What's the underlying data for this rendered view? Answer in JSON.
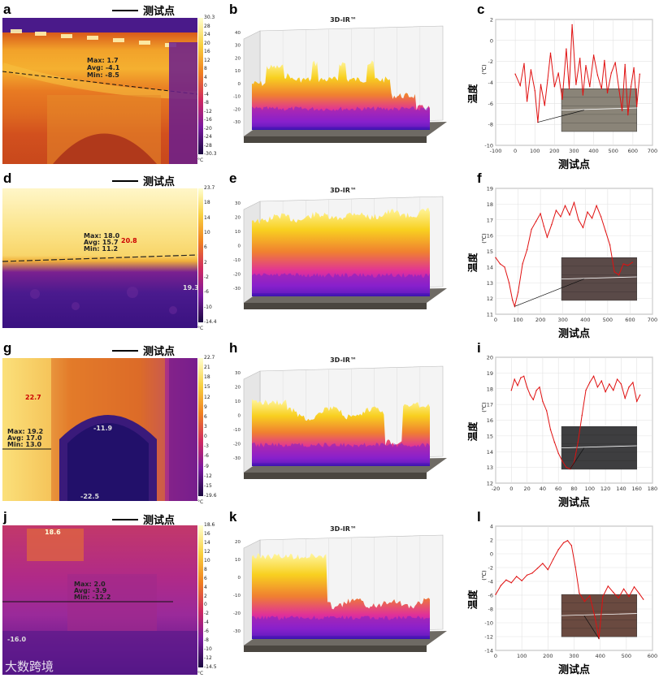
{
  "legend_label": "测试点",
  "ir_title": "3D-IR™",
  "watermark": "大数跨境",
  "rows": [
    {
      "thermal_letter": "a",
      "surface_letter": "b",
      "chart_letter": "c",
      "scale_ticks": [
        "30.3",
        "28",
        "24",
        "20",
        "16",
        "12",
        "8",
        "4",
        "0",
        "-4",
        "-8",
        "-12",
        "-16",
        "-20",
        "-24",
        "-28",
        "-30.3"
      ],
      "scale_unit": "°C",
      "surface_zticks": [
        "40",
        "30",
        "20",
        "10",
        "0",
        "-10",
        "-20",
        "-30"
      ],
      "annotations": [
        "Max: 1.7",
        "Avg: -4.1",
        "Min: -8.5"
      ]
    },
    {
      "thermal_letter": "d",
      "surface_letter": "e",
      "chart_letter": "f",
      "scale_ticks": [
        "23.7",
        "18",
        "14",
        "10",
        "6",
        "2",
        "-2",
        "-6",
        "-10",
        "-14.4"
      ],
      "scale_unit": "°C",
      "surface_zticks": [
        "30",
        "20",
        "10",
        "0",
        "-10",
        "-20",
        "-30"
      ],
      "annotations": [
        "Max: 18.0",
        "Avg: 15.7",
        "Min: 11.2",
        "20.8",
        "19.3"
      ]
    },
    {
      "thermal_letter": "g",
      "surface_letter": "h",
      "chart_letter": "i",
      "scale_ticks": [
        "22.7",
        "21",
        "18",
        "15",
        "12",
        "9",
        "6",
        "3",
        "0",
        "-3",
        "-6",
        "-9",
        "-12",
        "-15",
        "-19.6"
      ],
      "scale_unit": "°C",
      "surface_zticks": [
        "30",
        "20",
        "10",
        "0",
        "-10",
        "-20",
        "-30"
      ],
      "annotations": [
        "22.7",
        "Max: 19.2",
        "Avg: 17.0",
        "Min: 13.0",
        "-11.9",
        "-22.5"
      ]
    },
    {
      "thermal_letter": "j",
      "surface_letter": "k",
      "chart_letter": "l",
      "scale_ticks": [
        "18.6",
        "16",
        "14",
        "12",
        "10",
        "8",
        "6",
        "4",
        "2",
        "0",
        "-2",
        "-4",
        "-6",
        "-8",
        "-10",
        "-12",
        "-14.5"
      ],
      "scale_unit": "°C",
      "surface_zticks": [
        "20",
        "10",
        "0",
        "-10",
        "-20",
        "-30"
      ],
      "annotations": [
        "18.6",
        "Max: 2.0",
        "Avg: -3.9",
        "Min: -12.2",
        "-16.0"
      ]
    }
  ],
  "chart_data": [
    {
      "type": "line",
      "panel": "c",
      "xlabel": "测试点",
      "ylabel": "温度",
      "yunit": "(℃)",
      "xlim": [
        -100,
        700
      ],
      "ylim": [
        -10,
        2
      ],
      "xticks": [
        "-100",
        "0",
        "100",
        "200",
        "300",
        "400",
        "500",
        "600",
        "700"
      ],
      "yticks": [
        "2",
        "0",
        "-2",
        "-4",
        "-6",
        "-8",
        "-10"
      ],
      "x": [
        0,
        25,
        45,
        60,
        80,
        100,
        115,
        130,
        150,
        165,
        180,
        200,
        220,
        240,
        260,
        275,
        290,
        310,
        330,
        345,
        360,
        380,
        400,
        420,
        440,
        455,
        470,
        490,
        510,
        530,
        545,
        560,
        575,
        590,
        605,
        620,
        635
      ],
      "y": [
        -3.2,
        -4.3,
        -2.2,
        -5.8,
        -2.8,
        -4.8,
        -7.8,
        -4.2,
        -6.2,
        -3.8,
        -1.2,
        -4.4,
        -3.1,
        -5.6,
        -0.8,
        -4.6,
        1.5,
        -4.2,
        -1.7,
        -5.2,
        -2.4,
        -4.4,
        -1.4,
        -3.3,
        -4.6,
        -1.9,
        -5.0,
        -3.1,
        -2.1,
        -4.8,
        -6.7,
        -2.3,
        -7.1,
        -4.4,
        -2.6,
        -6.3,
        -3.2
      ]
    },
    {
      "type": "line",
      "panel": "f",
      "xlabel": "测试点",
      "ylabel": "温度",
      "yunit": "(℃)",
      "xlim": [
        0,
        700
      ],
      "ylim": [
        11,
        19
      ],
      "xticks": [
        "0",
        "100",
        "200",
        "300",
        "400",
        "500",
        "600",
        "700"
      ],
      "yticks": [
        "19",
        "18",
        "17",
        "16",
        "15",
        "14",
        "13",
        "12",
        "11"
      ],
      "x": [
        0,
        20,
        40,
        60,
        75,
        85,
        100,
        120,
        140,
        160,
        180,
        200,
        215,
        230,
        250,
        270,
        290,
        310,
        330,
        350,
        370,
        390,
        410,
        430,
        450,
        470,
        490,
        510,
        530,
        550,
        570,
        590,
        610
      ],
      "y": [
        14.6,
        14.2,
        14.0,
        13.0,
        11.9,
        11.5,
        12.4,
        14.2,
        15.1,
        16.4,
        16.9,
        17.4,
        16.6,
        15.9,
        16.7,
        17.6,
        17.2,
        17.9,
        17.3,
        18.1,
        17.0,
        16.5,
        17.5,
        17.1,
        17.9,
        17.2,
        16.3,
        15.4,
        13.7,
        13.5,
        14.2,
        14.1,
        14.3
      ]
    },
    {
      "type": "line",
      "panel": "i",
      "xlabel": "测试点",
      "ylabel": "温度",
      "yunit": "(℃)",
      "xlim": [
        -20,
        180
      ],
      "ylim": [
        12,
        20
      ],
      "xticks": [
        "-20",
        "0",
        "20",
        "40",
        "60",
        "80",
        "100",
        "120",
        "140",
        "160",
        "180"
      ],
      "yticks": [
        "20",
        "19",
        "18",
        "17",
        "16",
        "15",
        "14",
        "13",
        "12"
      ],
      "x": [
        0,
        4,
        8,
        12,
        16,
        20,
        24,
        28,
        32,
        36,
        40,
        45,
        50,
        55,
        60,
        65,
        70,
        75,
        80,
        85,
        90,
        95,
        100,
        105,
        110,
        115,
        120,
        125,
        130,
        135,
        140,
        145,
        150,
        155,
        160,
        164
      ],
      "y": [
        17.9,
        18.6,
        18.2,
        18.7,
        18.8,
        18.1,
        17.6,
        17.3,
        17.9,
        18.1,
        17.2,
        16.6,
        15.4,
        14.6,
        13.9,
        13.4,
        13.0,
        12.9,
        13.3,
        14.6,
        16.3,
        17.9,
        18.4,
        18.8,
        18.1,
        18.5,
        17.8,
        18.3,
        17.9,
        18.6,
        18.3,
        17.4,
        18.1,
        18.4,
        17.2,
        17.6
      ]
    },
    {
      "type": "line",
      "panel": "l",
      "xlabel": "测试点",
      "ylabel": "温度",
      "yunit": "(℃)",
      "xlim": [
        0,
        600
      ],
      "ylim": [
        -14,
        4
      ],
      "xticks": [
        "0",
        "100",
        "200",
        "300",
        "400",
        "500",
        "600"
      ],
      "yticks": [
        "4",
        "2",
        "0",
        "-2",
        "-4",
        "-6",
        "-8",
        "-10",
        "-12",
        "-14"
      ],
      "x": [
        0,
        20,
        40,
        60,
        80,
        100,
        120,
        140,
        160,
        180,
        200,
        220,
        240,
        260,
        275,
        290,
        305,
        320,
        340,
        360,
        380,
        395,
        410,
        430,
        450,
        470,
        490,
        510,
        530,
        550,
        565
      ],
      "y": [
        -5.9,
        -4.6,
        -3.8,
        -4.2,
        -3.3,
        -3.9,
        -3.1,
        -2.8,
        -2.1,
        -1.4,
        -2.3,
        -0.8,
        0.6,
        1.6,
        1.9,
        1.2,
        -1.9,
        -5.7,
        -6.9,
        -6.1,
        -9.2,
        -12.3,
        -6.2,
        -4.7,
        -5.6,
        -6.4,
        -5.1,
        -6.2,
        -4.8,
        -5.8,
        -6.6
      ]
    }
  ]
}
